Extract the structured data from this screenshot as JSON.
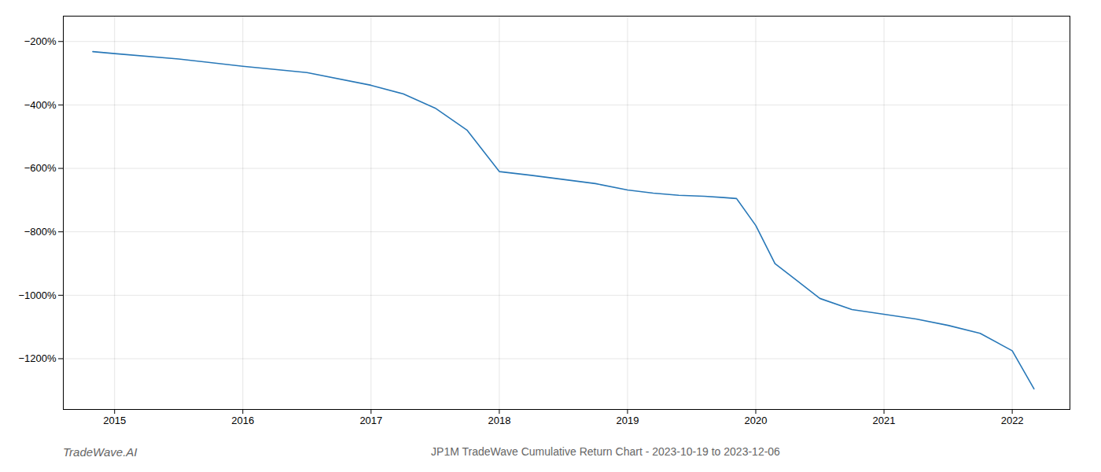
{
  "chart_data": {
    "type": "line",
    "x": [
      2014.83,
      2015.0,
      2015.5,
      2016.0,
      2016.5,
      2017.0,
      2017.25,
      2017.5,
      2017.75,
      2018.0,
      2018.25,
      2018.5,
      2018.75,
      2019.0,
      2019.2,
      2019.4,
      2019.6,
      2019.75,
      2019.85,
      2020.0,
      2020.15,
      2020.5,
      2020.75,
      2021.0,
      2021.25,
      2021.5,
      2021.75,
      2022.0,
      2022.17
    ],
    "values": [
      -232,
      -238,
      -255,
      -278,
      -298,
      -338,
      -365,
      -410,
      -480,
      -610,
      -622,
      -635,
      -648,
      -668,
      -678,
      -685,
      -688,
      -692,
      -695,
      -780,
      -900,
      -1010,
      -1045,
      -1060,
      -1075,
      -1095,
      -1120,
      -1175,
      -1295
    ],
    "color": "#2878b8",
    "xlim": [
      2014.6,
      2022.45
    ],
    "ylim": [
      -1360,
      -120
    ],
    "xticks": [
      2015,
      2016,
      2017,
      2018,
      2019,
      2020,
      2021,
      2022
    ],
    "yticks": [
      {
        "value": -200,
        "label": "−200%"
      },
      {
        "value": -400,
        "label": "−400%"
      },
      {
        "value": -600,
        "label": "−600%"
      },
      {
        "value": -800,
        "label": "−800%"
      },
      {
        "value": -1000,
        "label": "−1000%"
      },
      {
        "value": -1200,
        "label": "−1200%"
      }
    ],
    "grid": true,
    "annotations": [
      "TradeWave.AI",
      "JP1M TradeWave Cumulative Return Chart - 2023-10-19 to 2023-12-06"
    ]
  }
}
